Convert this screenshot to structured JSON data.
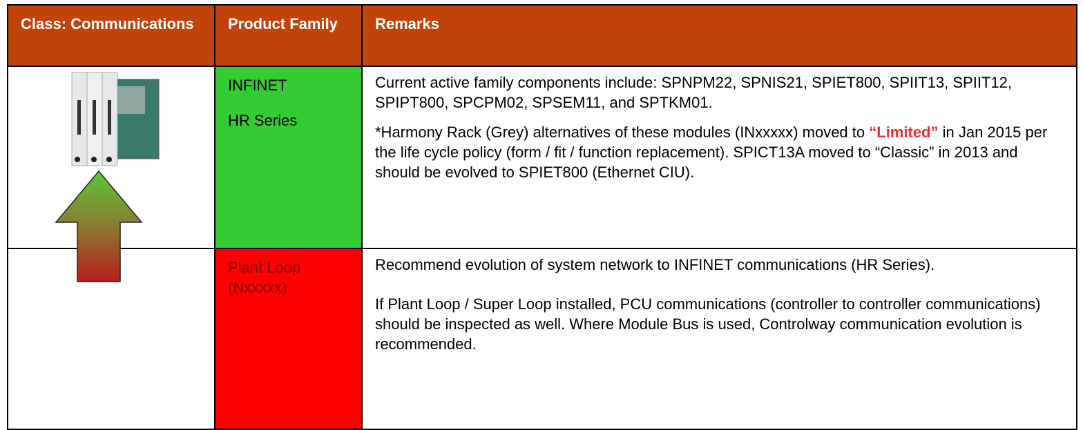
{
  "table": {
    "header": [
      "Class: Communications",
      "Product Family",
      "Remarks"
    ],
    "rows": [
      {
        "family": [
          "INFINET",
          "HR Series"
        ],
        "remarks": [
          [
            "Current active family components include:  SPNPM22, SPNIS21, SPIET800, SPIIT13, SPIIT12, SPIPT800, SPCPM02, SPSEM11, and SPTKM01."
          ],
          [
            "*Harmony Rack (Grey) alternatives of these modules (INxxxxx) moved to ",
            "“Limited”",
            " in Jan 2015 per the life cycle policy (form / fit / function replacement). SPICT13A moved to “Classic” in 2013 and should be evolved to SPIET800 (Ethernet CIU)."
          ]
        ]
      },
      {
        "family": [
          "Plant Loop (Nxxxxx)"
        ],
        "remarks": [
          [
            "Recommend evolution of system network to INFINET communications (HR Series)."
          ],
          [
            "If Plant Loop / Super Loop installed, PCU communications (controller to controller communications) should be inspected as well.  Where Module Bus is used, Controlway communication evolution is recommended."
          ]
        ]
      }
    ]
  }
}
